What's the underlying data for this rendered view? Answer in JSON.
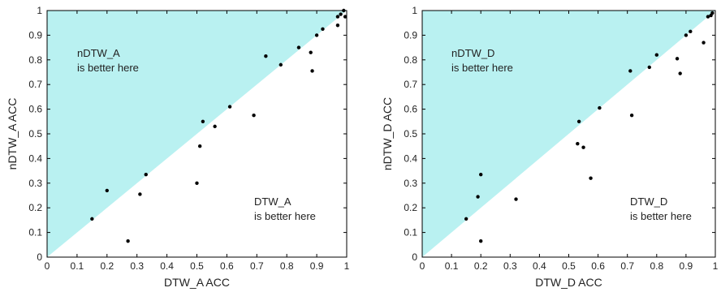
{
  "chart_data": [
    {
      "type": "scatter",
      "xlabel": "DTW_A ACC",
      "ylabel": "nDTW_A ACC",
      "xlim": [
        0,
        1
      ],
      "ylim": [
        0,
        1
      ],
      "xticks": [
        "0",
        "0.1",
        "0.2",
        "0.3",
        "0.4",
        "0.5",
        "0.6",
        "0.7",
        "0.8",
        "0.9",
        "1"
      ],
      "yticks": [
        "0",
        "0.1",
        "0.2",
        "0.3",
        "0.4",
        "0.5",
        "0.6",
        "0.7",
        "0.8",
        "0.9",
        "1"
      ],
      "upper_label": [
        "nDTW_A",
        "is better here"
      ],
      "lower_label": [
        "DTW_A",
        "is better here"
      ],
      "region_color": "#b9f1f1",
      "point_color": "#000000",
      "points": [
        [
          0.15,
          0.155
        ],
        [
          0.2,
          0.27
        ],
        [
          0.27,
          0.065
        ],
        [
          0.31,
          0.255
        ],
        [
          0.33,
          0.335
        ],
        [
          0.5,
          0.3
        ],
        [
          0.51,
          0.45
        ],
        [
          0.52,
          0.55
        ],
        [
          0.56,
          0.53
        ],
        [
          0.61,
          0.61
        ],
        [
          0.69,
          0.575
        ],
        [
          0.73,
          0.815
        ],
        [
          0.78,
          0.78
        ],
        [
          0.84,
          0.85
        ],
        [
          0.88,
          0.83
        ],
        [
          0.885,
          0.755
        ],
        [
          0.9,
          0.9
        ],
        [
          0.92,
          0.925
        ],
        [
          0.97,
          0.94
        ],
        [
          0.97,
          0.975
        ],
        [
          0.98,
          0.985
        ],
        [
          0.99,
          1.0
        ],
        [
          0.995,
          0.975
        ]
      ]
    },
    {
      "type": "scatter",
      "xlabel": "DTW_D ACC",
      "ylabel": "nDTW_D ACC",
      "xlim": [
        0,
        1
      ],
      "ylim": [
        0,
        1
      ],
      "xticks": [
        "0",
        "0.1",
        "0.2",
        "0.3",
        "0.4",
        "0.5",
        "0.6",
        "0.7",
        "0.8",
        "0.9",
        "1"
      ],
      "yticks": [
        "0",
        "0.1",
        "0.2",
        "0.3",
        "0.4",
        "0.5",
        "0.6",
        "0.7",
        "0.8",
        "0.9",
        "1"
      ],
      "upper_label": [
        "nDTW_D",
        "is better here"
      ],
      "lower_label": [
        "DTW_D",
        "is better here"
      ],
      "region_color": "#b9f1f1",
      "point_color": "#000000",
      "points": [
        [
          0.15,
          0.155
        ],
        [
          0.19,
          0.245
        ],
        [
          0.2,
          0.335
        ],
        [
          0.2,
          0.065
        ],
        [
          0.32,
          0.235
        ],
        [
          0.53,
          0.46
        ],
        [
          0.535,
          0.55
        ],
        [
          0.55,
          0.445
        ],
        [
          0.575,
          0.32
        ],
        [
          0.605,
          0.605
        ],
        [
          0.71,
          0.755
        ],
        [
          0.715,
          0.575
        ],
        [
          0.775,
          0.77
        ],
        [
          0.8,
          0.82
        ],
        [
          0.87,
          0.805
        ],
        [
          0.88,
          0.745
        ],
        [
          0.9,
          0.9
        ],
        [
          0.915,
          0.915
        ],
        [
          0.96,
          0.87
        ],
        [
          0.975,
          0.975
        ],
        [
          0.985,
          0.98
        ],
        [
          0.99,
          0.99
        ]
      ]
    }
  ]
}
